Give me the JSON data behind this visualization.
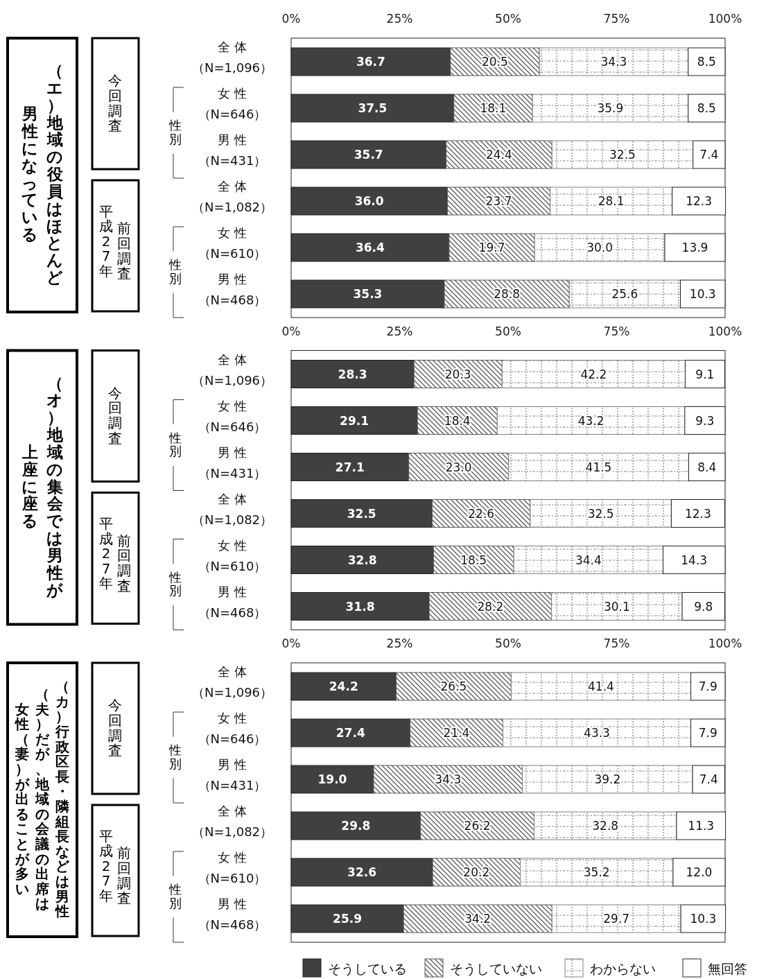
{
  "chart_data": [
    {
      "type": "bar",
      "orientation": "horizontal",
      "stacked": true,
      "title": "（エ）地域の役員はほとんど",
      "categories": [
        "全 体（N=1,096）",
        "女 性（N=646）",
        "男 性（N=431）",
        "全 体（N=1,082）",
        "女 性（N=610）",
        "男 性（N=468）"
      ],
      "series": [
        {
          "color": "#404040",
          "values": [
            36.7,
            37.5,
            35.7,
            36.0,
            36.4,
            35.3
          ],
          "value_labels": [
            "36.7",
            "37.5",
            "35.7",
            "36.0",
            "36.4",
            "35.3"
          ]
        },
        {
          "color": "#595959",
          "values": [
            20.5,
            18.1,
            24.4,
            23.7,
            19.7,
            28.8
          ],
          "value_labels": [
            "20.5",
            "18.1",
            "24.4",
            "23.7",
            "19.7",
            "28.8"
          ]
        },
        {
          "color": "#808080",
          "values": [
            34.3,
            35.9,
            32.5,
            28.1,
            30.0,
            25.6
          ],
          "value_labels": [
            "34.3",
            "35.9",
            "32.5",
            "28.1",
            "30.0",
            "25.6"
          ]
        },
        {
          "color": "#ffffff",
          "values": [
            8.5,
            8.5,
            7.4,
            12.3,
            13.9,
            10.3
          ],
          "value_labels": [
            "8.5",
            "8.5",
            "7.4",
            "12.3",
            "13.9",
            "10.3"
          ]
        }
      ],
      "xlim": [
        0,
        100
      ],
      "xticks": [
        {
          "value": 0,
          "label": "0%"
        },
        {
          "value": 25,
          "label": "25%"
        },
        {
          "value": 50,
          "label": "50%"
        },
        {
          "value": 75,
          "label": "75%"
        },
        {
          "value": 100,
          "label": "100%"
        }
      ],
      "annotations": [
        "今回調査",
        "前回調査",
        "平成27年",
        "性別",
        "性別",
        "男性になっている"
      ]
    },
    {
      "type": "bar",
      "orientation": "horizontal",
      "stacked": true,
      "title": "（オ）地域の集会では男性が",
      "categories": [
        "全 体（N=1,096）",
        "女 性（N=646）",
        "男 性（N=431）",
        "全 体（N=1,082）",
        "女 性（N=610）",
        "男 性（N=468）"
      ],
      "series": [
        {
          "color": "#404040",
          "values": [
            28.3,
            29.1,
            27.1,
            32.5,
            32.8,
            31.8
          ],
          "value_labels": [
            "28.3",
            "29.1",
            "27.1",
            "32.5",
            "32.8",
            "31.8"
          ]
        },
        {
          "color": "#595959",
          "values": [
            20.3,
            18.4,
            23.0,
            22.6,
            18.5,
            28.2
          ],
          "value_labels": [
            "20.3",
            "18.4",
            "23.0",
            "22.6",
            "18.5",
            "28.2"
          ]
        },
        {
          "color": "#808080",
          "values": [
            42.2,
            43.2,
            41.5,
            32.5,
            34.4,
            30.1
          ],
          "value_labels": [
            "42.2",
            "43.2",
            "41.5",
            "32.5",
            "34.4",
            "30.1"
          ]
        },
        {
          "color": "#ffffff",
          "values": [
            9.1,
            9.3,
            8.4,
            12.3,
            14.3,
            9.8
          ],
          "value_labels": [
            "9.1",
            "9.3",
            "8.4",
            "12.3",
            "14.3",
            "9.8"
          ]
        }
      ],
      "xlim": [
        0,
        100
      ],
      "xticks": [
        {
          "value": 0,
          "label": "0%"
        },
        {
          "value": 25,
          "label": "25%"
        },
        {
          "value": 50,
          "label": "50%"
        },
        {
          "value": 75,
          "label": "75%"
        },
        {
          "value": 100,
          "label": "100%"
        }
      ],
      "annotations": [
        "今回調査",
        "前回調査",
        "平成27年",
        "性別",
        "性別",
        "上座に座る"
      ]
    },
    {
      "type": "bar",
      "orientation": "horizontal",
      "stacked": true,
      "title": "（カ）行政区長・隣組長などは男性",
      "categories": [
        "全 体（N=1,096）",
        "女 性（N=646）",
        "男 性（N=431）",
        "全 体（N=1,082）",
        "女 性（N=610）",
        "男 性（N=468）"
      ],
      "series": [
        {
          "name": "そうしている",
          "color": "#404040",
          "values": [
            24.2,
            27.4,
            19.0,
            29.8,
            32.6,
            25.9
          ],
          "value_labels": [
            "24.2",
            "27.4",
            "19.0",
            "29.8",
            "32.6",
            "25.9"
          ]
        },
        {
          "name": "そうしていない",
          "color": "#595959",
          "values": [
            26.5,
            21.4,
            34.3,
            26.2,
            20.2,
            34.2
          ],
          "value_labels": [
            "26.5",
            "21.4",
            "34.3",
            "26.2",
            "20.2",
            "34.2"
          ]
        },
        {
          "name": "わからない",
          "color": "#808080",
          "values": [
            41.4,
            43.3,
            39.2,
            32.8,
            35.2,
            29.7
          ],
          "value_labels": [
            "41.4",
            "43.3",
            "39.2",
            "32.8",
            "35.2",
            "29.7"
          ]
        },
        {
          "name": "無回答",
          "color": "#ffffff",
          "values": [
            7.9,
            7.9,
            7.4,
            11.3,
            12.0,
            10.3
          ],
          "value_labels": [
            "7.9",
            "7.9",
            "7.4",
            "11.3",
            "12.0",
            "10.3"
          ]
        }
      ],
      "xlim": [
        0,
        100
      ],
      "xticks": [
        {
          "value": 0,
          "label": "0%"
        },
        {
          "value": 25,
          "label": "25%"
        },
        {
          "value": 50,
          "label": "50%"
        },
        {
          "value": 75,
          "label": "75%"
        },
        {
          "value": 100,
          "label": "100%"
        }
      ],
      "legend": "bottom",
      "annotations": [
        "今回調査",
        "前回調査",
        "平成27年",
        "性別",
        "性別",
        "（夫）だが、地域の会議の出席は",
        "女性（妻）が出ることが多い"
      ]
    }
  ]
}
